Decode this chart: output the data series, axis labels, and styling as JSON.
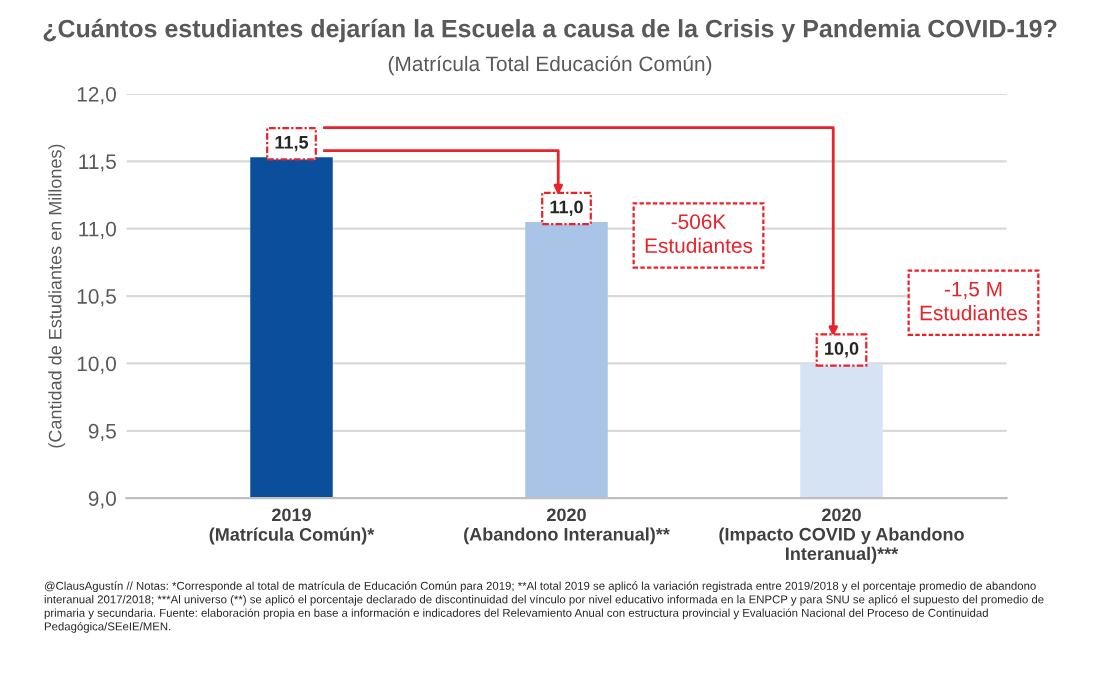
{
  "chart_data": {
    "type": "bar",
    "title": "¿Cuántos estudiantes dejarían la Escuela a causa de la Crisis y Pandemia COVID-19?",
    "subtitle": "(Matrícula Total Educación Común)",
    "ylabel": "(Cantidad de Estudiantes en Millones)",
    "categories": [
      "2019\n(Matrícula Común)*",
      "2020\n(Abandono Interanual)**",
      "2020\n(Impacto COVID y Abandono\nInteranual)***"
    ],
    "values": [
      11.53,
      11.05,
      10.0
    ],
    "colors": [
      "#0b4f9c",
      "#a9c4e6",
      "#d6e3f4"
    ],
    "value_labels": [
      "11,5",
      "11,0",
      "10,0"
    ],
    "ylim": [
      9,
      12
    ],
    "yticks": [
      {
        "value": 9,
        "label": "9,0"
      },
      {
        "value": 9.5,
        "label": "9,5"
      },
      {
        "value": 10,
        "label": "10,0"
      },
      {
        "value": 10.5,
        "label": "10,5"
      },
      {
        "value": 11,
        "label": "11,0"
      },
      {
        "value": 11.5,
        "label": "11,5"
      },
      {
        "value": 12,
        "label": "12,0"
      }
    ],
    "grid": "y",
    "annotations": [
      "-506K\nEstudiantes",
      "-1,5 M\nEstudiantes",
      "@ClausAgustín // Notas: *Corresponde al total de matrícula de Educación Común para 2019; **Al total 2019 se aplicó la variación registrada entre 2019/2018 y el porcentaje promedio de abandono",
      "interanual 2017/2018; ***Al universo (**) se aplicó el porcentaje declarado de discontinuidad del vínculo por nivel educativo informada en la ENPCP y para SNU se aplicó el supuesto del promedio de",
      "primaria y secundaria. Fuente: elaboración propia en base a información e indicadores del Relevamiento Anual con estructura provincial y Evaluación Nacional del Proceso de Continuidad",
      "Pedagógica/SEeIE/MEN."
    ]
  }
}
